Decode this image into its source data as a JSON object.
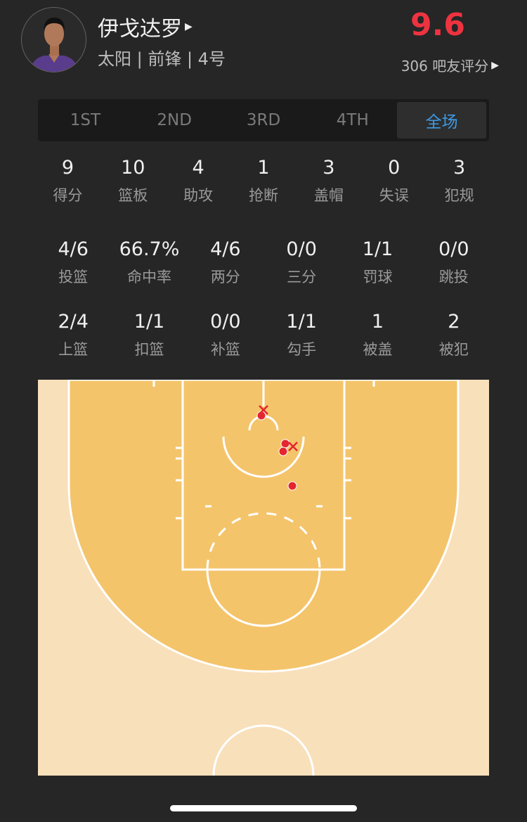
{
  "player": {
    "name": "伊戈达罗",
    "info": "太阳 | 前锋 | 4号",
    "rating": "9.6",
    "rating_count_label": "306 吧友评分"
  },
  "tabs": [
    {
      "label": "1ST"
    },
    {
      "label": "2ND"
    },
    {
      "label": "3RD"
    },
    {
      "label": "4TH"
    },
    {
      "label": "全场",
      "active": true
    }
  ],
  "stats_main": [
    {
      "value": "9",
      "label": "得分"
    },
    {
      "value": "10",
      "label": "篮板"
    },
    {
      "value": "4",
      "label": "助攻"
    },
    {
      "value": "1",
      "label": "抢断"
    },
    {
      "value": "3",
      "label": "盖帽"
    },
    {
      "value": "0",
      "label": "失误"
    },
    {
      "value": "3",
      "label": "犯规"
    }
  ],
  "stats_shooting": [
    {
      "value": "4/6",
      "label": "投篮"
    },
    {
      "value": "66.7%",
      "label": "命中率"
    },
    {
      "value": "4/6",
      "label": "两分"
    },
    {
      "value": "0/0",
      "label": "三分"
    },
    {
      "value": "1/1",
      "label": "罚球"
    },
    {
      "value": "0/0",
      "label": "跳投"
    }
  ],
  "stats_types": [
    {
      "value": "2/4",
      "label": "上篮"
    },
    {
      "value": "1/1",
      "label": "扣篮"
    },
    {
      "value": "0/0",
      "label": "补篮"
    },
    {
      "value": "1/1",
      "label": "勾手"
    },
    {
      "value": "1",
      "label": "被盖"
    },
    {
      "value": "2",
      "label": "被犯"
    }
  ],
  "colors": {
    "rating": "#ee3340",
    "active_tab": "#3d9ae8",
    "court_outer": "#f8e0bb",
    "court_inner": "#f4c46b",
    "shot": "#e3262f"
  },
  "shots": {
    "made": 4,
    "missed": 2
  }
}
